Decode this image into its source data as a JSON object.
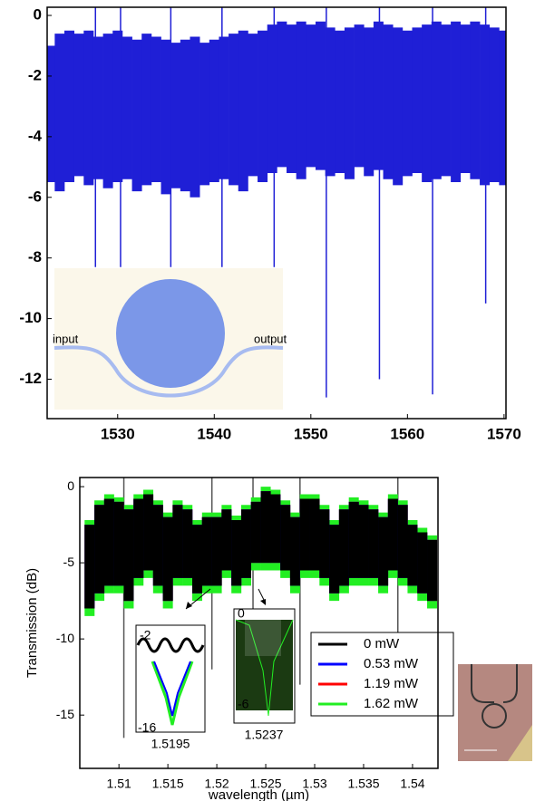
{
  "chart_data": [
    {
      "type": "band",
      "xlim": [
        1522.7,
        1570.2
      ],
      "ylim": [
        -13.3,
        0.27
      ],
      "xticks": [
        1530,
        1540,
        1550,
        1560,
        1570
      ],
      "yticks": [
        0,
        -2,
        -4,
        -6,
        -8,
        -10,
        -12
      ],
      "x": [
        1523,
        1524,
        1525,
        1526,
        1527,
        1528,
        1529,
        1530,
        1531,
        1532,
        1533,
        1534,
        1535,
        1536,
        1537,
        1538,
        1539,
        1540,
        1541,
        1542,
        1543,
        1544,
        1545,
        1546,
        1547,
        1548,
        1549,
        1550,
        1551,
        1552,
        1553,
        1554,
        1555,
        1556,
        1557,
        1558,
        1559,
        1560,
        1561,
        1562,
        1563,
        1564,
        1565,
        1566,
        1567,
        1568,
        1569,
        1570
      ],
      "series": [
        {
          "color": "#1f1fd6",
          "values": [
            -5.5,
            -5.8,
            -5.5,
            -5.3,
            -5.6,
            -5.4,
            -5.7,
            -5.5,
            -5.4,
            -5.8,
            -5.6,
            -5.5,
            -5.9,
            -5.7,
            -5.8,
            -6.0,
            -5.6,
            -5.5,
            -5.4,
            -5.6,
            -5.8,
            -5.3,
            -5.5,
            -5.2,
            -5.0,
            -5.2,
            -5.4,
            -5.0,
            -5.1,
            -5.3,
            -5.2,
            -5.4,
            -5.0,
            -5.3,
            -5.1,
            -5.4,
            -5.6,
            -5.3,
            -5.2,
            -5.5,
            -5.4,
            -5.3,
            -5.5,
            -5.2,
            -5.4,
            -5.6,
            -5.5,
            -5.6
          ],
          "upper": [
            -1.0,
            -0.6,
            -0.5,
            -0.6,
            -0.5,
            -0.7,
            -0.6,
            -0.5,
            -0.7,
            -0.8,
            -0.6,
            -0.7,
            -0.8,
            -0.9,
            -0.8,
            -0.7,
            -0.9,
            -0.8,
            -0.7,
            -0.6,
            -0.5,
            -0.6,
            -0.5,
            -0.3,
            -0.2,
            -0.3,
            -0.2,
            -0.3,
            -0.2,
            -0.4,
            -0.5,
            -0.4,
            -0.3,
            -0.4,
            -0.2,
            -0.3,
            -0.4,
            -0.5,
            -0.4,
            -0.3,
            -0.2,
            -0.3,
            -0.2,
            -0.3,
            -0.2,
            -0.3,
            -0.4,
            -0.5
          ]
        }
      ],
      "dips": {
        "color": "#1f1fd6",
        "x": [
          1527.7,
          1530.3,
          1535.5,
          1540.8,
          1546.2,
          1551.6,
          1557.1,
          1562.6,
          1568.1
        ],
        "values": [
          -8.3,
          -8.3,
          -8.3,
          -8.3,
          -8.3,
          -12.6,
          -12.0,
          -12.5,
          -9.5
        ]
      },
      "annotations": [
        "input",
        "output"
      ]
    },
    {
      "type": "band",
      "xlabel": "wavelength (µm)",
      "ylabel": "Transmission (dB)",
      "xlim": [
        1.506,
        1.5426
      ],
      "ylim": [
        -18.5,
        0.6
      ],
      "xticks": [
        1.51,
        1.515,
        1.52,
        1.525,
        1.53,
        1.535,
        1.54
      ],
      "yticks": [
        0,
        -5,
        -10,
        -15
      ],
      "legend": "lower right",
      "x": [
        1.507,
        1.508,
        1.509,
        1.51,
        1.511,
        1.512,
        1.513,
        1.514,
        1.515,
        1.516,
        1.517,
        1.518,
        1.519,
        1.52,
        1.521,
        1.522,
        1.523,
        1.524,
        1.525,
        1.526,
        1.527,
        1.528,
        1.529,
        1.53,
        1.531,
        1.532,
        1.533,
        1.534,
        1.535,
        1.536,
        1.537,
        1.538,
        1.539,
        1.54,
        1.541,
        1.542
      ],
      "series": [
        {
          "name": "0 mW",
          "color": "#000000",
          "values": [
            -8,
            -7,
            -6.5,
            -6.5,
            -7.5,
            -6,
            -5.5,
            -6.5,
            -7.5,
            -6,
            -6,
            -7,
            -6.5,
            -6.5,
            -5.5,
            -6.5,
            -6,
            -5,
            -5,
            -5,
            -5.5,
            -6.5,
            -5.5,
            -5.5,
            -6,
            -7,
            -6.5,
            -6,
            -6,
            -6,
            -6.5,
            -5.5,
            -6,
            -6.5,
            -7,
            -7.5
          ],
          "upper": [
            -2.5,
            -1.2,
            -0.8,
            -1,
            -1.5,
            -0.8,
            -0.5,
            -1.2,
            -2,
            -1.2,
            -1.5,
            -2.5,
            -2,
            -2,
            -1.5,
            -2.2,
            -1.5,
            -1,
            -0.3,
            -0.5,
            -1.2,
            -2,
            -0.8,
            -0.8,
            -1.5,
            -2.5,
            -1.5,
            -1,
            -1.2,
            -1.5,
            -2,
            -0.8,
            -1.2,
            -2.5,
            -3,
            -3.5
          ]
        },
        {
          "name": "0.53 mW",
          "color": "#0000ff",
          "values": [
            -8,
            -7,
            -6.5,
            -6.5,
            -7.5,
            -6,
            -5.5,
            -6.5,
            -7.5,
            -6,
            -6,
            -7,
            -6.5,
            -6.5,
            -5.5,
            -6.5,
            -6,
            -5,
            -5,
            -5,
            -5.5,
            -6.5,
            -5.5,
            -5.5,
            -6,
            -7,
            -6.5,
            -6,
            -6,
            -6,
            -6.5,
            -5.5,
            -6,
            -6.5,
            -7,
            -7.5
          ],
          "upper": [
            -2.5,
            -1.2,
            -0.8,
            -1,
            -1.5,
            -0.8,
            -0.5,
            -1.2,
            -2,
            -1.2,
            -1.5,
            -2.5,
            -2,
            -2,
            -1.5,
            -2.2,
            -1.5,
            -1,
            -0.3,
            -0.5,
            -1.2,
            -2,
            -0.8,
            -0.8,
            -1.5,
            -2.5,
            -1.5,
            -1,
            -1.2,
            -1.5,
            -2,
            -0.8,
            -1.2,
            -2.5,
            -3,
            -3.5
          ]
        },
        {
          "name": "1.19 mW",
          "color": "#ff0000",
          "values": [
            -8,
            -7,
            -6.5,
            -6.5,
            -7.5,
            -6,
            -5.5,
            -6.5,
            -7.5,
            -6,
            -6,
            -7,
            -6.5,
            -6.5,
            -5.5,
            -6.5,
            -6,
            -5,
            -5,
            -5,
            -5.5,
            -6.5,
            -5.5,
            -5.5,
            -6,
            -7,
            -6.5,
            -6,
            -6,
            -6,
            -6.5,
            -5.5,
            -6,
            -6.5,
            -7,
            -7.5
          ],
          "upper": [
            -2.5,
            -1.2,
            -0.8,
            -1,
            -1.5,
            -0.8,
            -0.5,
            -1.2,
            -2,
            -1.2,
            -1.5,
            -2.5,
            -2,
            -2,
            -1.5,
            -2.2,
            -1.5,
            -1,
            -0.3,
            -0.5,
            -1.2,
            -2,
            -0.8,
            -0.8,
            -1.5,
            -2.5,
            -1.5,
            -1,
            -1.2,
            -1.5,
            -2,
            -0.8,
            -1.2,
            -2.5,
            -3,
            -3.5
          ]
        },
        {
          "name": "1.62 mW",
          "color": "#22ee22",
          "values": [
            -8.5,
            -7.5,
            -7,
            -7,
            -8,
            -6.5,
            -6,
            -7,
            -8,
            -6.5,
            -6.5,
            -7.5,
            -7,
            -7,
            -6,
            -7,
            -6.5,
            -5.5,
            -5.5,
            -5.5,
            -6,
            -7,
            -6,
            -6,
            -6.5,
            -7.5,
            -7,
            -6.5,
            -6.5,
            -6.5,
            -7,
            -6,
            -6.5,
            -7,
            -7.5,
            -8
          ],
          "upper": [
            -2.2,
            -0.9,
            -0.5,
            -0.7,
            -1.2,
            -0.5,
            -0.2,
            -0.9,
            -1.7,
            -0.9,
            -1.2,
            -2.2,
            -1.7,
            -1.7,
            -1.2,
            -1.9,
            -1.2,
            -0.7,
            0,
            -0.2,
            -0.9,
            -1.7,
            -0.5,
            -0.5,
            -1.2,
            -2.2,
            -1.2,
            -0.7,
            -0.9,
            -1.2,
            -1.7,
            -0.5,
            -0.9,
            -2.2,
            -2.7,
            -3.2
          ]
        }
      ],
      "dips": {
        "color": "#555555",
        "x": [
          1.5105,
          1.5195,
          1.5237,
          1.5285,
          1.5385
        ],
        "values": [
          -16.5,
          -12,
          -8,
          -13,
          -10
        ]
      },
      "insets": [
        {
          "yticks": [
            -2,
            -16
          ],
          "xticks": [
            1.5195
          ]
        },
        {
          "yticks": [
            0,
            -6
          ],
          "xticks": [
            1.5237
          ]
        }
      ]
    }
  ]
}
